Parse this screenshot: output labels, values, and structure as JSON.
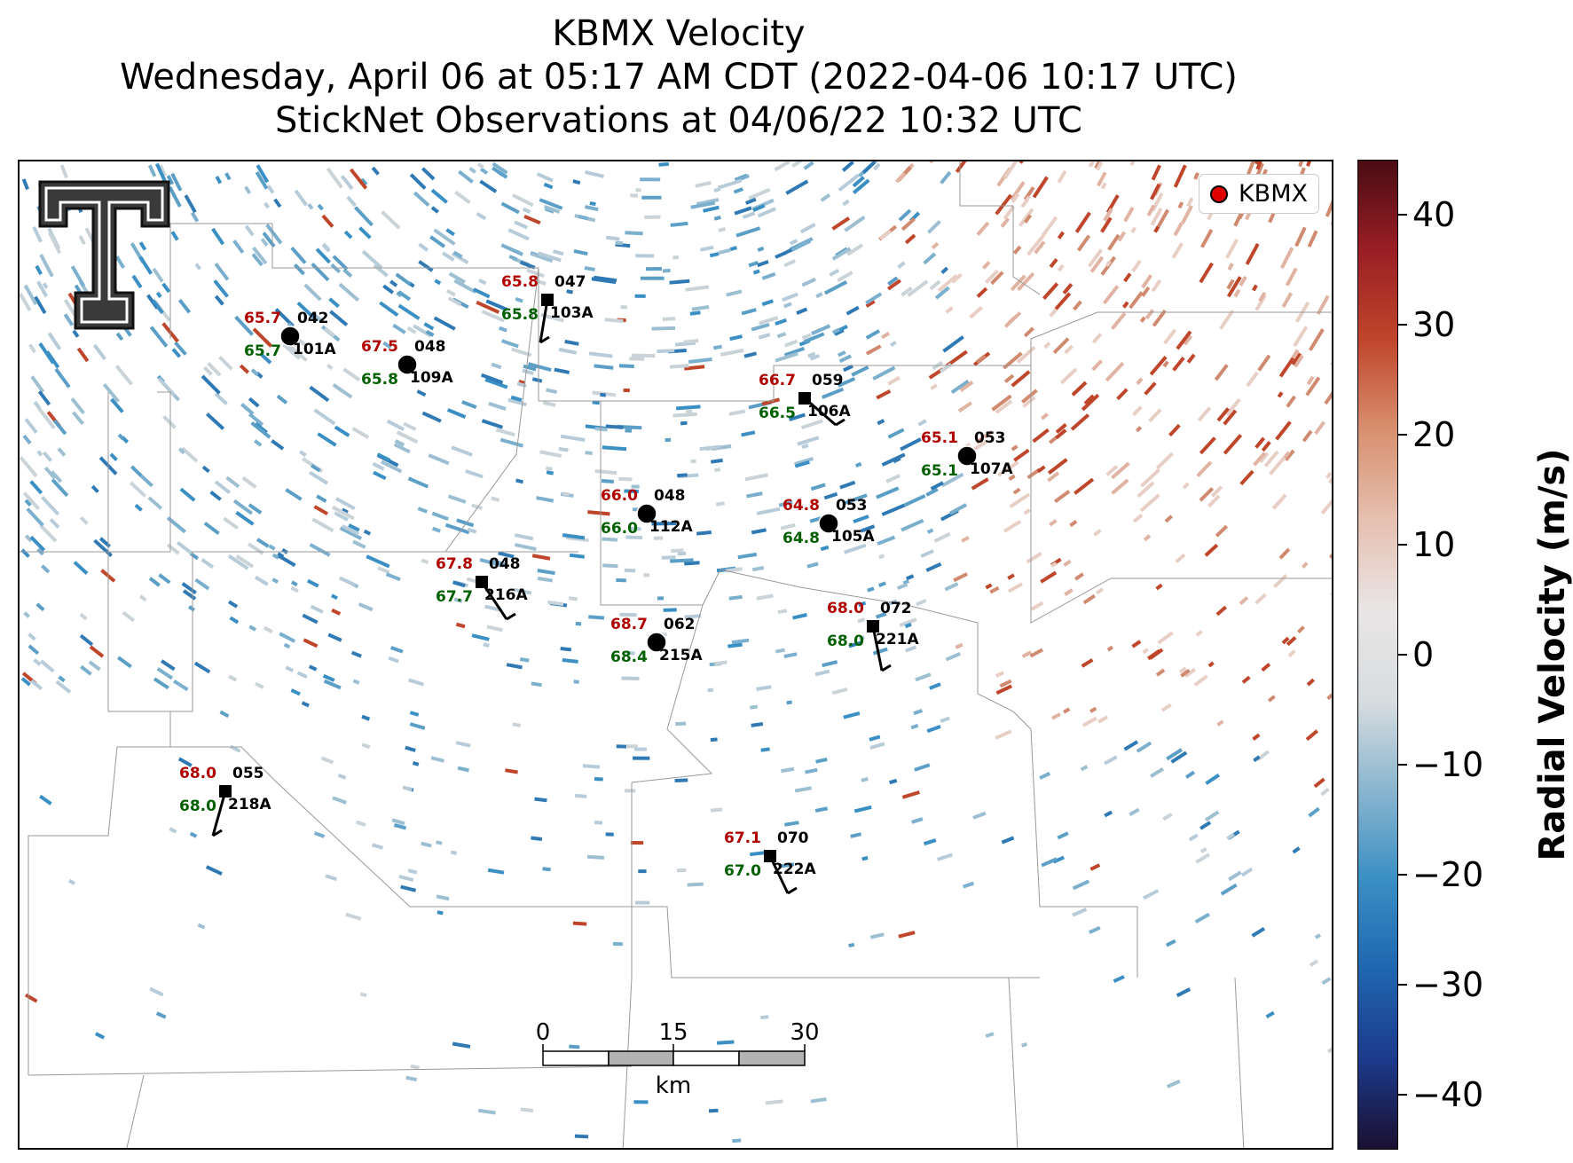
{
  "title": {
    "line1": "KBMX Velocity",
    "line2": "Wednesday, April 06 at 05:17 AM CDT (2022-04-06 10:17 UTC)",
    "line3": "StickNet Observations at 04/06/22 10:32 UTC"
  },
  "legend": {
    "label": "KBMX",
    "color": "#e00000"
  },
  "colorbar": {
    "title": "Radial Velocity (m/s)",
    "ticks": [
      "40",
      "30",
      "20",
      "10",
      "0",
      "−10",
      "−20",
      "−30",
      "−40"
    ],
    "range": [
      -45,
      45
    ],
    "colors": [
      "#1a1030",
      "#1c3a8c",
      "#1f66b0",
      "#3a8fc4",
      "#8ab6cf",
      "#d8dde0",
      "#e9e5e5",
      "#e6c0b0",
      "#d8906f",
      "#c0462b",
      "#9a1e24",
      "#4a0c14"
    ]
  },
  "scalebar": {
    "ticks": [
      "0",
      "15",
      "30"
    ],
    "unit": "km"
  },
  "stations": [
    {
      "id": "101A",
      "temp": "65.7",
      "dew": "65.7",
      "dir": "042",
      "marker": "circle"
    },
    {
      "id": "109A",
      "temp": "67.5",
      "dew": "65.8",
      "dir": "048",
      "marker": "circle"
    },
    {
      "id": "103A",
      "temp": "65.8",
      "dew": "65.8",
      "dir": "047",
      "marker": "square"
    },
    {
      "id": "106A",
      "temp": "66.7",
      "dew": "66.5",
      "dir": "059",
      "marker": "square"
    },
    {
      "id": "107A",
      "temp": "65.1",
      "dew": "65.1",
      "dir": "053",
      "marker": "circle"
    },
    {
      "id": "112A",
      "temp": "66.0",
      "dew": "66.0",
      "dir": "048",
      "marker": "circle"
    },
    {
      "id": "105A",
      "temp": "64.8",
      "dew": "64.8",
      "dir": "053",
      "marker": "circle"
    },
    {
      "id": "216A",
      "temp": "67.8",
      "dew": "67.7",
      "dir": "048",
      "marker": "square"
    },
    {
      "id": "215A",
      "temp": "68.7",
      "dew": "68.4",
      "dir": "062",
      "marker": "circle"
    },
    {
      "id": "221A",
      "temp": "68.0",
      "dew": "68.0",
      "dir": "072",
      "marker": "square"
    },
    {
      "id": "218A",
      "temp": "68.0",
      "dew": "68.0",
      "dir": "055",
      "marker": "square"
    },
    {
      "id": "222A",
      "temp": "67.1",
      "dew": "67.0",
      "dir": "070",
      "marker": "square"
    }
  ],
  "colors": {
    "temp": "#b00000",
    "dew": "#006000",
    "label": "#000000"
  }
}
